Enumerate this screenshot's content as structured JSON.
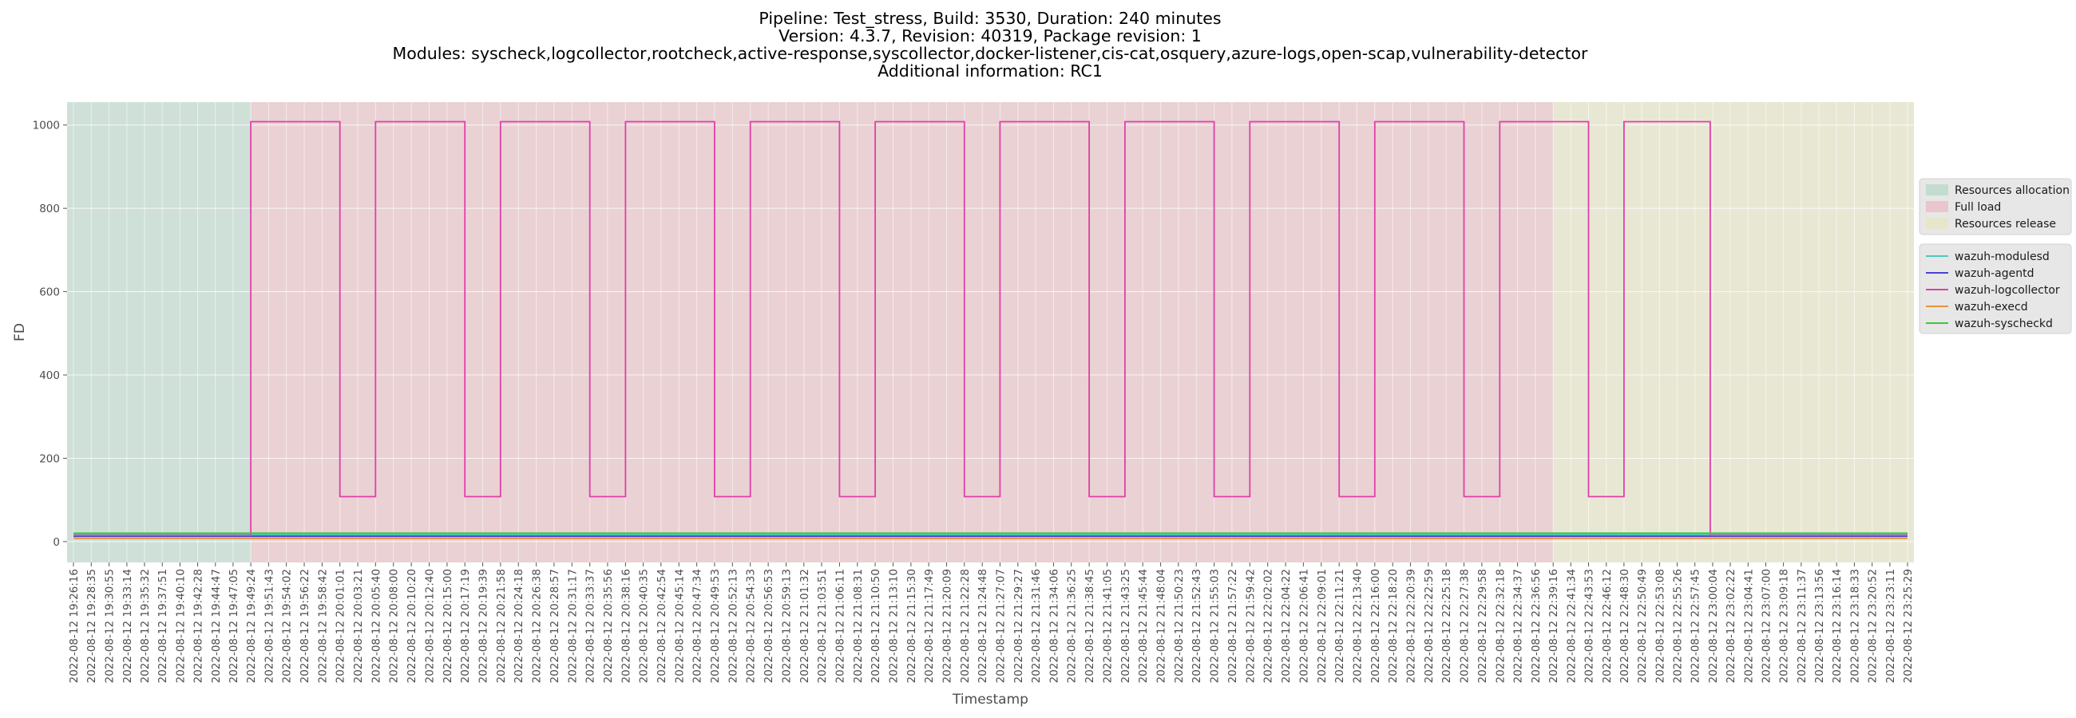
{
  "chart_data": {
    "type": "line",
    "title": [
      "Pipeline: Test_stress, Build: 3530, Duration: 240 minutes",
      "Version: 4.3.7, Revision: 40319, Package revision: 1",
      "Modules: syscheck,logcollector,rootcheck,active-response,syscollector,docker-listener,cis-cat,osquery,azure-logs,open-scap,vulnerability-detector",
      "Additional information: RC1"
    ],
    "xlabel": "Timestamp",
    "ylabel": "FD",
    "ylim": [
      -50,
      1055
    ],
    "yticks": [
      0,
      200,
      400,
      600,
      800,
      1000
    ],
    "grid": true,
    "legend_placement": "center right",
    "x_ticks": [
      "2022-08-12 19:26:16",
      "2022-08-12 19:28:35",
      "2022-08-12 19:30:55",
      "2022-08-12 19:33:14",
      "2022-08-12 19:35:32",
      "2022-08-12 19:37:51",
      "2022-08-12 19:40:10",
      "2022-08-12 19:42:28",
      "2022-08-12 19:44:47",
      "2022-08-12 19:47:05",
      "2022-08-12 19:49:24",
      "2022-08-12 19:51:43",
      "2022-08-12 19:54:02",
      "2022-08-12 19:56:22",
      "2022-08-12 19:58:42",
      "2022-08-12 20:01:01",
      "2022-08-12 20:03:21",
      "2022-08-12 20:05:40",
      "2022-08-12 20:08:00",
      "2022-08-12 20:10:20",
      "2022-08-12 20:12:40",
      "2022-08-12 20:15:00",
      "2022-08-12 20:17:19",
      "2022-08-12 20:19:39",
      "2022-08-12 20:21:58",
      "2022-08-12 20:24:18",
      "2022-08-12 20:26:38",
      "2022-08-12 20:28:57",
      "2022-08-12 20:31:17",
      "2022-08-12 20:33:37",
      "2022-08-12 20:35:56",
      "2022-08-12 20:38:16",
      "2022-08-12 20:40:35",
      "2022-08-12 20:42:54",
      "2022-08-12 20:45:14",
      "2022-08-12 20:47:34",
      "2022-08-12 20:49:53",
      "2022-08-12 20:52:13",
      "2022-08-12 20:54:33",
      "2022-08-12 20:56:53",
      "2022-08-12 20:59:13",
      "2022-08-12 21:01:32",
      "2022-08-12 21:03:51",
      "2022-08-12 21:06:11",
      "2022-08-12 21:08:31",
      "2022-08-12 21:10:50",
      "2022-08-12 21:13:10",
      "2022-08-12 21:15:30",
      "2022-08-12 21:17:49",
      "2022-08-12 21:20:09",
      "2022-08-12 21:22:28",
      "2022-08-12 21:24:48",
      "2022-08-12 21:27:07",
      "2022-08-12 21:29:27",
      "2022-08-12 21:31:46",
      "2022-08-12 21:34:06",
      "2022-08-12 21:36:25",
      "2022-08-12 21:38:45",
      "2022-08-12 21:41:05",
      "2022-08-12 21:43:25",
      "2022-08-12 21:45:44",
      "2022-08-12 21:48:04",
      "2022-08-12 21:50:23",
      "2022-08-12 21:52:43",
      "2022-08-12 21:55:03",
      "2022-08-12 21:57:22",
      "2022-08-12 21:59:42",
      "2022-08-12 22:02:02",
      "2022-08-12 22:04:22",
      "2022-08-12 22:06:41",
      "2022-08-12 22:09:01",
      "2022-08-12 22:11:21",
      "2022-08-12 22:13:40",
      "2022-08-12 22:16:00",
      "2022-08-12 22:18:20",
      "2022-08-12 22:20:39",
      "2022-08-12 22:22:59",
      "2022-08-12 22:25:18",
      "2022-08-12 22:27:38",
      "2022-08-12 22:29:58",
      "2022-08-12 22:32:18",
      "2022-08-12 22:34:37",
      "2022-08-12 22:36:56",
      "2022-08-12 22:39:16",
      "2022-08-12 22:41:34",
      "2022-08-12 22:43:53",
      "2022-08-12 22:46:12",
      "2022-08-12 22:48:30",
      "2022-08-12 22:50:49",
      "2022-08-12 22:53:08",
      "2022-08-12 22:55:26",
      "2022-08-12 22:57:45",
      "2022-08-12 23:00:04",
      "2022-08-12 23:02:22",
      "2022-08-12 23:04:41",
      "2022-08-12 23:07:00",
      "2022-08-12 23:09:18",
      "2022-08-12 23:11:37",
      "2022-08-12 23:13:56",
      "2022-08-12 23:16:14",
      "2022-08-12 23:18:33",
      "2022-08-12 23:20:52",
      "2022-08-12 23:23:11",
      "2022-08-12 23:25:29"
    ],
    "phases": [
      {
        "name": "Resources allocation",
        "start": "2022-08-12 19:26:16",
        "end": "2022-08-12 19:49:24",
        "color": "#c3dcd0"
      },
      {
        "name": "Full load",
        "start": "2022-08-12 19:49:24",
        "end": "2022-08-12 22:39:16",
        "color": "#e9c6cb"
      },
      {
        "name": "Resources release",
        "start": "2022-08-12 22:39:16",
        "end": "2022-08-12 23:25:29",
        "color": "#e7e6cb"
      }
    ],
    "series": [
      {
        "name": "wazuh-modulesd",
        "color": "#4fc8c0",
        "points": [
          [
            "2022-08-12 19:26:16",
            17
          ],
          [
            "2022-08-12 23:25:29",
            17
          ]
        ]
      },
      {
        "name": "wazuh-agentd",
        "color": "#4b3fd6",
        "points": [
          [
            "2022-08-12 19:26:16",
            13
          ],
          [
            "2022-08-12 23:25:29",
            13
          ]
        ]
      },
      {
        "name": "wazuh-logcollector",
        "color": "#e040a8",
        "points": [
          [
            "2022-08-12 19:26:16",
            15
          ],
          [
            "2022-08-12 19:49:24",
            15
          ],
          [
            "2022-08-12 19:49:24",
            1008
          ],
          [
            "2022-08-12 20:01:01",
            1008
          ],
          [
            "2022-08-12 20:01:01",
            108
          ],
          [
            "2022-08-12 20:05:40",
            108
          ],
          [
            "2022-08-12 20:05:40",
            1008
          ],
          [
            "2022-08-12 20:17:19",
            1008
          ],
          [
            "2022-08-12 20:17:19",
            108
          ],
          [
            "2022-08-12 20:21:58",
            108
          ],
          [
            "2022-08-12 20:21:58",
            1008
          ],
          [
            "2022-08-12 20:33:37",
            1008
          ],
          [
            "2022-08-12 20:33:37",
            108
          ],
          [
            "2022-08-12 20:38:16",
            108
          ],
          [
            "2022-08-12 20:38:16",
            1008
          ],
          [
            "2022-08-12 20:49:53",
            1008
          ],
          [
            "2022-08-12 20:49:53",
            108
          ],
          [
            "2022-08-12 20:54:33",
            108
          ],
          [
            "2022-08-12 20:54:33",
            1008
          ],
          [
            "2022-08-12 21:06:11",
            1008
          ],
          [
            "2022-08-12 21:06:11",
            108
          ],
          [
            "2022-08-12 21:10:50",
            108
          ],
          [
            "2022-08-12 21:10:50",
            1008
          ],
          [
            "2022-08-12 21:22:28",
            1008
          ],
          [
            "2022-08-12 21:22:28",
            108
          ],
          [
            "2022-08-12 21:27:07",
            108
          ],
          [
            "2022-08-12 21:27:07",
            1008
          ],
          [
            "2022-08-12 21:38:45",
            1008
          ],
          [
            "2022-08-12 21:38:45",
            108
          ],
          [
            "2022-08-12 21:43:25",
            108
          ],
          [
            "2022-08-12 21:43:25",
            1008
          ],
          [
            "2022-08-12 21:55:03",
            1008
          ],
          [
            "2022-08-12 21:55:03",
            108
          ],
          [
            "2022-08-12 21:59:42",
            108
          ],
          [
            "2022-08-12 21:59:42",
            1008
          ],
          [
            "2022-08-12 22:11:21",
            1008
          ],
          [
            "2022-08-12 22:11:21",
            108
          ],
          [
            "2022-08-12 22:16:00",
            108
          ],
          [
            "2022-08-12 22:16:00",
            1008
          ],
          [
            "2022-08-12 22:27:38",
            1008
          ],
          [
            "2022-08-12 22:27:38",
            108
          ],
          [
            "2022-08-12 22:32:18",
            108
          ],
          [
            "2022-08-12 22:32:18",
            1008
          ],
          [
            "2022-08-12 22:43:53",
            1008
          ],
          [
            "2022-08-12 22:43:53",
            108
          ],
          [
            "2022-08-12 22:48:30",
            108
          ],
          [
            "2022-08-12 22:48:30",
            1008
          ],
          [
            "2022-08-12 22:59:45",
            1008
          ],
          [
            "2022-08-12 22:59:45",
            15
          ],
          [
            "2022-08-12 23:25:29",
            15
          ]
        ]
      },
      {
        "name": "wazuh-execd",
        "color": "#e8923a",
        "points": [
          [
            "2022-08-12 19:26:16",
            8
          ],
          [
            "2022-08-12 23:25:29",
            8
          ]
        ]
      },
      {
        "name": "wazuh-syscheckd",
        "color": "#3cc83c",
        "points": [
          [
            "2022-08-12 19:26:16",
            20
          ],
          [
            "2022-08-12 23:25:29",
            20
          ]
        ]
      }
    ]
  }
}
